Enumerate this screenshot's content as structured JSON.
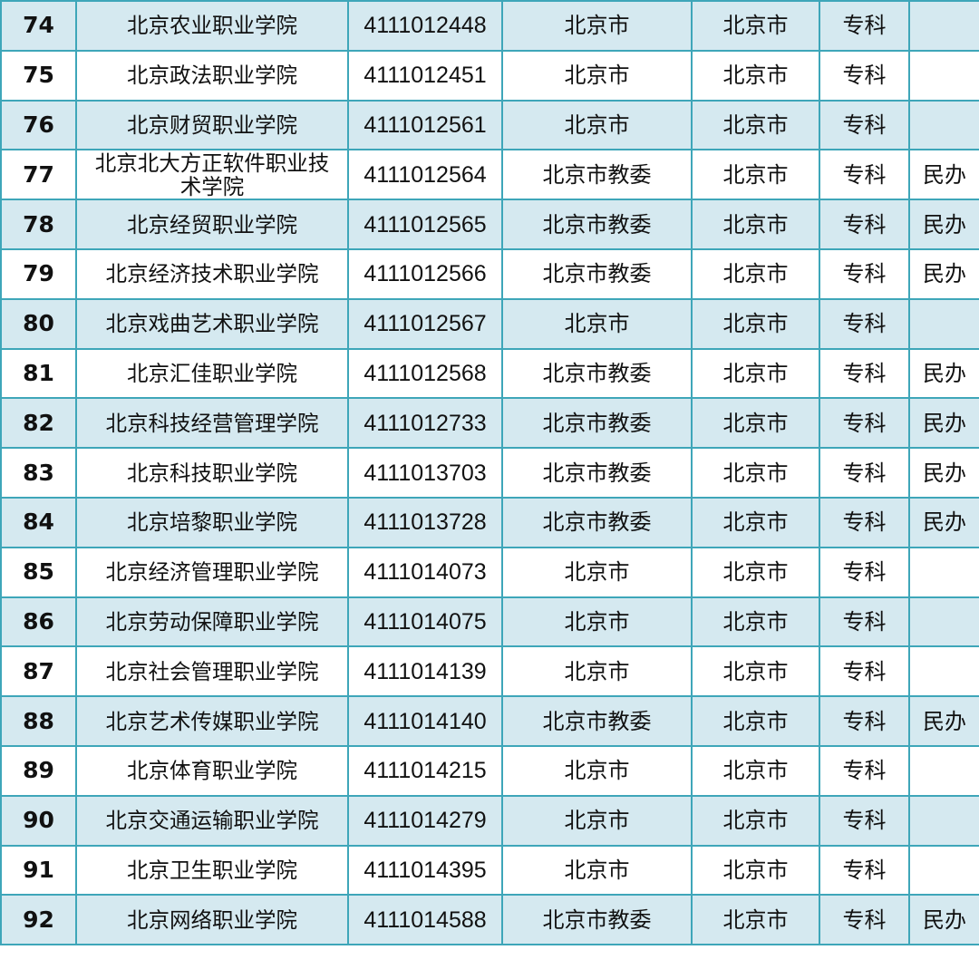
{
  "colors": {
    "border": "#3ea6b9",
    "shade": "#d5e9f0"
  },
  "rows": [
    {
      "no": "74",
      "name": "北京农业职业学院",
      "code": "4111012448",
      "dept": "北京市",
      "loc": "北京市",
      "level": "专科",
      "note": ""
    },
    {
      "no": "75",
      "name": "北京政法职业学院",
      "code": "4111012451",
      "dept": "北京市",
      "loc": "北京市",
      "level": "专科",
      "note": ""
    },
    {
      "no": "76",
      "name": "北京财贸职业学院",
      "code": "4111012561",
      "dept": "北京市",
      "loc": "北京市",
      "level": "专科",
      "note": ""
    },
    {
      "no": "77",
      "name": "北京北大方正软件职业技术学院",
      "code": "4111012564",
      "dept": "北京市教委",
      "loc": "北京市",
      "level": "专科",
      "note": "民办"
    },
    {
      "no": "78",
      "name": "北京经贸职业学院",
      "code": "4111012565",
      "dept": "北京市教委",
      "loc": "北京市",
      "level": "专科",
      "note": "民办"
    },
    {
      "no": "79",
      "name": "北京经济技术职业学院",
      "code": "4111012566",
      "dept": "北京市教委",
      "loc": "北京市",
      "level": "专科",
      "note": "民办"
    },
    {
      "no": "80",
      "name": "北京戏曲艺术职业学院",
      "code": "4111012567",
      "dept": "北京市",
      "loc": "北京市",
      "level": "专科",
      "note": ""
    },
    {
      "no": "81",
      "name": "北京汇佳职业学院",
      "code": "4111012568",
      "dept": "北京市教委",
      "loc": "北京市",
      "level": "专科",
      "note": "民办"
    },
    {
      "no": "82",
      "name": "北京科技经营管理学院",
      "code": "4111012733",
      "dept": "北京市教委",
      "loc": "北京市",
      "level": "专科",
      "note": "民办"
    },
    {
      "no": "83",
      "name": "北京科技职业学院",
      "code": "4111013703",
      "dept": "北京市教委",
      "loc": "北京市",
      "level": "专科",
      "note": "民办"
    },
    {
      "no": "84",
      "name": "北京培黎职业学院",
      "code": "4111013728",
      "dept": "北京市教委",
      "loc": "北京市",
      "level": "专科",
      "note": "民办"
    },
    {
      "no": "85",
      "name": "北京经济管理职业学院",
      "code": "4111014073",
      "dept": "北京市",
      "loc": "北京市",
      "level": "专科",
      "note": ""
    },
    {
      "no": "86",
      "name": "北京劳动保障职业学院",
      "code": "4111014075",
      "dept": "北京市",
      "loc": "北京市",
      "level": "专科",
      "note": ""
    },
    {
      "no": "87",
      "name": "北京社会管理职业学院",
      "code": "4111014139",
      "dept": "北京市",
      "loc": "北京市",
      "level": "专科",
      "note": ""
    },
    {
      "no": "88",
      "name": "北京艺术传媒职业学院",
      "code": "4111014140",
      "dept": "北京市教委",
      "loc": "北京市",
      "level": "专科",
      "note": "民办"
    },
    {
      "no": "89",
      "name": "北京体育职业学院",
      "code": "4111014215",
      "dept": "北京市",
      "loc": "北京市",
      "level": "专科",
      "note": ""
    },
    {
      "no": "90",
      "name": "北京交通运输职业学院",
      "code": "4111014279",
      "dept": "北京市",
      "loc": "北京市",
      "level": "专科",
      "note": ""
    },
    {
      "no": "91",
      "name": "北京卫生职业学院",
      "code": "4111014395",
      "dept": "北京市",
      "loc": "北京市",
      "level": "专科",
      "note": ""
    },
    {
      "no": "92",
      "name": "北京网络职业学院",
      "code": "4111014588",
      "dept": "北京市教委",
      "loc": "北京市",
      "level": "专科",
      "note": "民办"
    }
  ]
}
